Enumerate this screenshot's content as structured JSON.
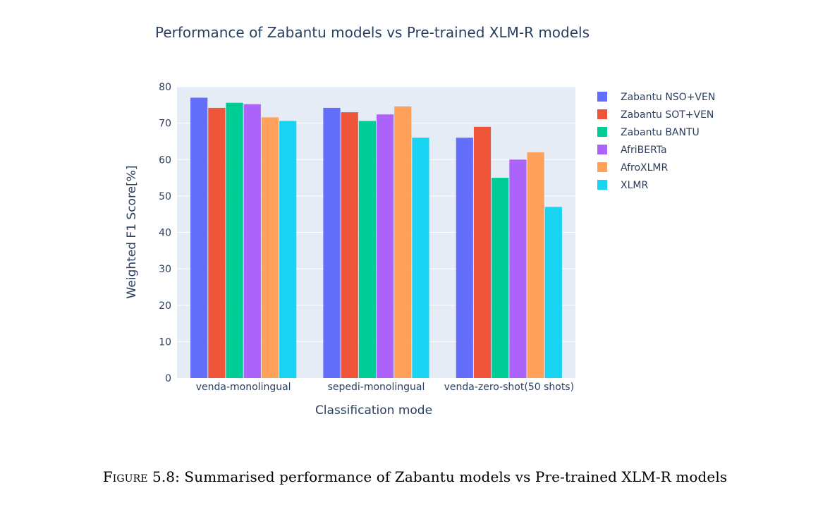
{
  "chart_data": {
    "type": "bar",
    "title": "Performance of Zabantu models vs Pre-trained XLM-R models",
    "xlabel": "Classification mode",
    "ylabel": "Weighted F1 Score[%]",
    "ylim": [
      0,
      80
    ],
    "yticks": [
      0,
      10,
      20,
      30,
      40,
      50,
      60,
      70,
      80
    ],
    "grid": true,
    "legend_position": "right",
    "categories": [
      "venda-monolingual",
      "sepedi-monolingual",
      "venda-zero-shot(50 shots)"
    ],
    "series": [
      {
        "name": "Zabantu NSO+VEN",
        "color": "#636efa",
        "values": [
          77,
          74.2,
          66
        ]
      },
      {
        "name": "Zabantu SOT+VEN",
        "color": "#ef553b",
        "values": [
          74.2,
          73,
          69
        ]
      },
      {
        "name": "Zabantu BANTU",
        "color": "#00cc96",
        "values": [
          75.6,
          70.6,
          55
        ]
      },
      {
        "name": "AfriBERTa",
        "color": "#ab63fa",
        "values": [
          75.2,
          72.4,
          60
        ]
      },
      {
        "name": "AfroXLMR",
        "color": "#ffa15a",
        "values": [
          71.6,
          74.6,
          62
        ]
      },
      {
        "name": "XLMR",
        "color": "#19d3f3",
        "values": [
          70.6,
          66,
          47
        ]
      }
    ]
  },
  "caption": {
    "label": "Figure 5.8:",
    "text": "Summarised performance of Zabantu models vs Pre-trained XLM-R models"
  }
}
